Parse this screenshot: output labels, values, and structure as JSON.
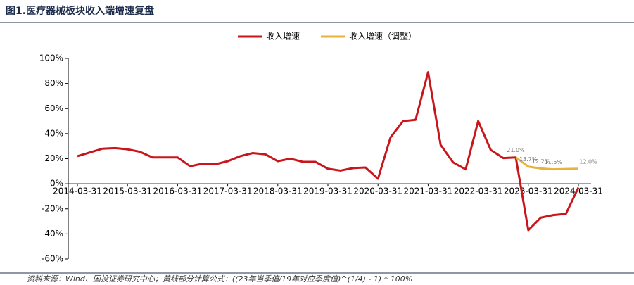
{
  "chart_data": {
    "type": "line",
    "title": "图1.医疗器械板块收入端增速复盘",
    "note": "资料来源：Wind、国投证券研究中心；黄线部分计算公式：((23年当季值/19年对应季度值)^(1/4) - 1) * 100%",
    "categories": [
      "2014-03-31",
      null,
      null,
      null,
      "2015-03-31",
      null,
      null,
      null,
      "2016-03-31",
      null,
      null,
      null,
      "2017-03-31",
      null,
      null,
      null,
      "2018-03-31",
      null,
      null,
      null,
      "2019-03-31",
      null,
      null,
      null,
      "2020-03-31",
      null,
      null,
      null,
      "2021-03-31",
      null,
      null,
      null,
      "2022-03-31",
      null,
      null,
      null,
      "2023-03-31",
      null,
      null,
      null,
      "2024-03-31"
    ],
    "series": [
      {
        "name": "收入增速",
        "color": "#c8161d",
        "values": [
          22,
          25,
          28,
          28.5,
          27.5,
          25.5,
          21,
          21,
          21,
          14,
          16,
          15.5,
          18,
          22,
          24.5,
          23.5,
          18,
          20,
          17.5,
          17.5,
          12,
          10.5,
          12.5,
          13,
          4,
          37,
          50,
          51,
          89,
          31,
          17,
          11.5,
          50,
          27,
          20.5,
          21,
          -37,
          -27,
          -25,
          -24,
          -3
        ]
      },
      {
        "name": "收入增速（调整）",
        "color": "#e8b33a",
        "values": [
          null,
          null,
          null,
          null,
          null,
          null,
          null,
          null,
          null,
          null,
          null,
          null,
          null,
          null,
          null,
          null,
          null,
          null,
          null,
          null,
          null,
          null,
          null,
          null,
          null,
          null,
          null,
          null,
          null,
          null,
          null,
          null,
          null,
          null,
          null,
          21.0,
          13.7,
          12.2,
          11.5,
          11.8,
          12.0
        ],
        "value_labels": [
          null,
          null,
          null,
          null,
          null,
          null,
          null,
          null,
          null,
          null,
          null,
          null,
          null,
          null,
          null,
          null,
          null,
          null,
          null,
          null,
          null,
          null,
          null,
          null,
          null,
          null,
          null,
          null,
          null,
          null,
          null,
          null,
          null,
          null,
          null,
          "21.0%",
          "13.7%",
          "12.2%",
          "11.5%",
          null,
          "12.0%"
        ]
      }
    ],
    "ylim": [
      -60,
      100
    ],
    "yticks": [
      {
        "value": -60,
        "label": "-60%"
      },
      {
        "value": -40,
        "label": "-40%"
      },
      {
        "value": -20,
        "label": "-20%"
      },
      {
        "value": 0,
        "label": "0%"
      },
      {
        "value": 20,
        "label": "20%"
      },
      {
        "value": 40,
        "label": "40%"
      },
      {
        "value": 60,
        "label": "60%"
      },
      {
        "value": 80,
        "label": "80%"
      },
      {
        "value": 100,
        "label": "100%"
      }
    ],
    "legend": "top"
  }
}
